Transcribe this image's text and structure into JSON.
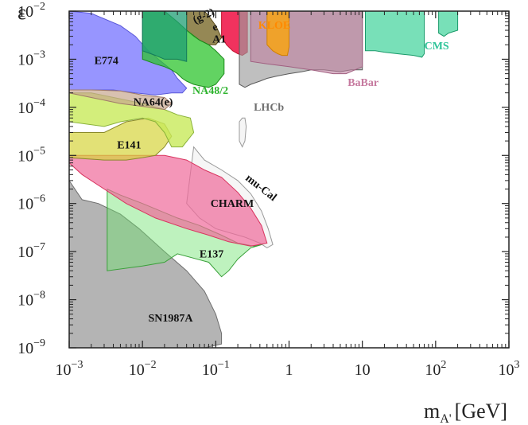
{
  "chart_data": {
    "type": "area",
    "title": "",
    "xlabel": "m",
    "xlabel_sub": "A'",
    "xlabel_unit": "[GeV]",
    "ylabel": "ε",
    "xscale": "log",
    "yscale": "log",
    "xlim": [
      0.001,
      1000
    ],
    "ylim": [
      1e-09,
      0.01
    ],
    "grid": false,
    "x_ticks": [
      {
        "value": 0.001,
        "base": "10",
        "exp": "−3"
      },
      {
        "value": 0.01,
        "base": "10",
        "exp": "−2"
      },
      {
        "value": 0.1,
        "base": "10",
        "exp": "−1"
      },
      {
        "value": 1,
        "base": "1",
        "exp": ""
      },
      {
        "value": 10,
        "base": "10",
        "exp": ""
      },
      {
        "value": 100,
        "base": "10",
        "exp": "2"
      },
      {
        "value": 1000,
        "base": "10",
        "exp": "3"
      }
    ],
    "y_ticks": [
      {
        "value": 0.01,
        "base": "10",
        "exp": "−2"
      },
      {
        "value": 0.001,
        "base": "10",
        "exp": "−3"
      },
      {
        "value": 0.0001,
        "base": "10",
        "exp": "−4"
      },
      {
        "value": 1e-05,
        "base": "10",
        "exp": "−5"
      },
      {
        "value": 1e-06,
        "base": "10",
        "exp": "−6"
      },
      {
        "value": 1e-07,
        "base": "10",
        "exp": "−7"
      },
      {
        "value": 1e-08,
        "base": "10",
        "exp": "−8"
      },
      {
        "value": 1e-09,
        "base": "10",
        "exp": "−9"
      }
    ],
    "regions": [
      {
        "name": "sn1987a",
        "fill": "#8c8c8c",
        "stroke": "#6e6e6e",
        "opacity": 0.65,
        "points": [
          [
            0.001,
            1e-09
          ],
          [
            0.001,
            3e-06
          ],
          [
            0.0015,
            1.2e-06
          ],
          [
            0.0025,
            1e-06
          ],
          [
            0.005,
            6e-07
          ],
          [
            0.009,
            3e-07
          ],
          [
            0.02,
            1e-07
          ],
          [
            0.04,
            4e-08
          ],
          [
            0.07,
            1.5e-08
          ],
          [
            0.1,
            5e-09
          ],
          [
            0.12,
            2e-09
          ],
          [
            0.12,
            1.2e-09
          ],
          [
            0.07,
            1e-09
          ]
        ]
      },
      {
        "name": "e137",
        "fill": "#6fe36f",
        "stroke": "#3aa03a",
        "opacity": 0.45,
        "points": [
          [
            0.0033,
            4e-08
          ],
          [
            0.0033,
            2e-06
          ],
          [
            0.005,
            1.5e-06
          ],
          [
            0.01,
            1e-06
          ],
          [
            0.03,
            5e-07
          ],
          [
            0.06,
            3.5e-07
          ],
          [
            0.12,
            2.2e-07
          ],
          [
            0.2,
            1.5e-07
          ],
          [
            0.33,
            1.3e-07
          ],
          [
            0.5,
            1.5e-07
          ],
          [
            0.3,
            1.2e-07
          ],
          [
            0.2,
            7e-08
          ],
          [
            0.15,
            4e-08
          ],
          [
            0.12,
            3e-08
          ],
          [
            0.08,
            6e-08
          ],
          [
            0.03,
            9e-08
          ],
          [
            0.02,
            6e-08
          ],
          [
            0.01,
            5e-08
          ]
        ]
      },
      {
        "name": "mucal",
        "fill": "#f4f4f4",
        "stroke": "#9a9a9a",
        "opacity": 0.85,
        "points": [
          [
            0.05,
            1.5e-05
          ],
          [
            0.07,
            8e-06
          ],
          [
            0.12,
            5e-06
          ],
          [
            0.2,
            3e-06
          ],
          [
            0.3,
            1.6e-06
          ],
          [
            0.42,
            7e-07
          ],
          [
            0.52,
            3e-07
          ],
          [
            0.6,
            1.4e-07
          ],
          [
            0.5,
            1.2e-07
          ],
          [
            0.4,
            1.5e-07
          ],
          [
            0.25,
            2e-07
          ],
          [
            0.15,
            2.5e-07
          ],
          [
            0.1,
            3e-07
          ],
          [
            0.06,
            5e-07
          ],
          [
            0.04,
            1e-06
          ]
        ]
      },
      {
        "name": "charm",
        "fill": "#f06a9a",
        "stroke": "#d9345f",
        "opacity": 0.7,
        "points": [
          [
            0.001,
            1e-05
          ],
          [
            0.001,
            7e-06
          ],
          [
            0.0015,
            4e-06
          ],
          [
            0.003,
            2e-06
          ],
          [
            0.006,
            1e-06
          ],
          [
            0.015,
            5e-07
          ],
          [
            0.04,
            3e-07
          ],
          [
            0.08,
            2.2e-07
          ],
          [
            0.15,
            1.6e-07
          ],
          [
            0.3,
            1.3e-07
          ],
          [
            0.5,
            1.5e-07
          ],
          [
            0.42,
            3.5e-07
          ],
          [
            0.3,
            8e-07
          ],
          [
            0.2,
            1.7e-06
          ],
          [
            0.12,
            3.5e-06
          ],
          [
            0.07,
            5e-06
          ],
          [
            0.04,
            8e-06
          ],
          [
            0.02,
            1e-05
          ]
        ]
      },
      {
        "name": "e141",
        "fill": "#d6d43c",
        "stroke": "#8a8a2a",
        "opacity": 0.7,
        "points": [
          [
            0.001,
            3e-05
          ],
          [
            0.001,
            9e-06
          ],
          [
            0.003,
            8e-06
          ],
          [
            0.006,
            8e-06
          ],
          [
            0.01,
            9e-06
          ],
          [
            0.015,
            1e-05
          ],
          [
            0.02,
            1.5e-05
          ],
          [
            0.025,
            2.5e-05
          ],
          [
            0.02,
            4.5e-05
          ],
          [
            0.012,
            6e-05
          ],
          [
            0.006,
            5e-05
          ],
          [
            0.003,
            3e-05
          ]
        ]
      },
      {
        "name": "na64",
        "fill": "#c8ea5a",
        "stroke": "#8ab23a",
        "opacity": 0.8,
        "points": [
          [
            0.001,
            0.0002
          ],
          [
            0.002,
            0.0002
          ],
          [
            0.005,
            0.00015
          ],
          [
            0.01,
            0.00012
          ],
          [
            0.02,
            9e-05
          ],
          [
            0.03,
            7e-05
          ],
          [
            0.045,
            6e-05
          ],
          [
            0.05,
            3e-05
          ],
          [
            0.035,
            1.5e-05
          ],
          [
            0.025,
            1.5e-05
          ],
          [
            0.02,
            3e-05
          ],
          [
            0.015,
            5e-05
          ],
          [
            0.01,
            6e-05
          ],
          [
            0.005,
            5e-05
          ],
          [
            0.003,
            4e-05
          ],
          [
            0.001,
            5e-05
          ]
        ]
      },
      {
        "name": "e774",
        "fill": "#7d7bff",
        "stroke": "#5a58d8",
        "opacity": 0.8,
        "points": [
          [
            0.001,
            0.01
          ],
          [
            0.002,
            0.009
          ],
          [
            0.005,
            0.005
          ],
          [
            0.008,
            0.003
          ],
          [
            0.012,
            0.0015
          ],
          [
            0.018,
            0.0009
          ],
          [
            0.025,
            0.0006
          ],
          [
            0.03,
            0.0004
          ],
          [
            0.04,
            0.00025
          ],
          [
            0.035,
            0.0002
          ],
          [
            0.025,
            0.0002
          ],
          [
            0.015,
            0.00018
          ],
          [
            0.008,
            0.0002
          ],
          [
            0.004,
            0.00023
          ],
          [
            0.002,
            0.00023
          ],
          [
            0.001,
            0.00023
          ]
        ]
      },
      {
        "name": "dark-tan",
        "fill": "#c8a68f",
        "stroke": "#a07a6a",
        "opacity": 0.7,
        "points": [
          [
            0.001,
            0.0002
          ],
          [
            0.002,
            0.00016
          ],
          [
            0.005,
            0.00012
          ],
          [
            0.01,
            0.000105
          ],
          [
            0.02,
            9e-05
          ],
          [
            0.025,
            0.00012
          ],
          [
            0.02,
            0.00016
          ],
          [
            0.01,
            0.00018
          ],
          [
            0.005,
            0.00022
          ],
          [
            0.002,
            0.00023
          ],
          [
            0.001,
            0.00023
          ]
        ]
      },
      {
        "name": "g2",
        "fill": "#7a6a2a",
        "stroke": "#5a4a1a",
        "opacity": 0.8,
        "points": [
          [
            0.04,
            0.01
          ],
          [
            0.04,
            0.004
          ],
          [
            0.05,
            0.003
          ],
          [
            0.06,
            0.0025
          ],
          [
            0.08,
            0.002
          ],
          [
            0.1,
            0.002
          ],
          [
            0.12,
            0.0028
          ],
          [
            0.1,
            0.005
          ],
          [
            0.08,
            0.008
          ],
          [
            0.07,
            0.01
          ]
        ]
      },
      {
        "name": "na48",
        "fill": "#2ec42e",
        "stroke": "#1a8a1a",
        "opacity": 0.75,
        "points": [
          [
            0.01,
            0.01
          ],
          [
            0.01,
            0.001
          ],
          [
            0.015,
            0.0008
          ],
          [
            0.02,
            0.0007
          ],
          [
            0.025,
            0.0006
          ],
          [
            0.03,
            0.0005
          ],
          [
            0.035,
            0.0004
          ],
          [
            0.04,
            0.00035
          ],
          [
            0.05,
            0.0003
          ],
          [
            0.06,
            0.00028
          ],
          [
            0.08,
            0.00026
          ],
          [
            0.1,
            0.0003
          ],
          [
            0.13,
            0.0005
          ],
          [
            0.13,
            0.001
          ],
          [
            0.1,
            0.0015
          ],
          [
            0.08,
            0.002
          ],
          [
            0.06,
            0.0025
          ],
          [
            0.04,
            0.004
          ],
          [
            0.03,
            0.006
          ],
          [
            0.02,
            0.01
          ]
        ]
      },
      {
        "name": "teal-left",
        "fill": "#1f9e74",
        "stroke": "#137a5a",
        "opacity": 0.75,
        "points": [
          [
            0.01,
            0.01
          ],
          [
            0.01,
            0.0015
          ],
          [
            0.015,
            0.0012
          ],
          [
            0.02,
            0.001
          ],
          [
            0.03,
            0.001
          ],
          [
            0.04,
            0.0009
          ],
          [
            0.04,
            0.01
          ]
        ]
      },
      {
        "name": "a1",
        "fill": "#f01c4c",
        "stroke": "#c0102c",
        "opacity": 0.9,
        "points": [
          [
            0.12,
            0.01
          ],
          [
            0.12,
            0.003
          ],
          [
            0.14,
            0.002
          ],
          [
            0.17,
            0.0015
          ],
          [
            0.2,
            0.0013
          ],
          [
            0.23,
            0.0012
          ],
          [
            0.27,
            0.0014
          ],
          [
            0.27,
            0.01
          ]
        ]
      },
      {
        "name": "lhcb",
        "fill": "#9c9c9c",
        "stroke": "#5a5a5a",
        "opacity": 0.65,
        "points": [
          [
            0.21,
            0.01
          ],
          [
            0.21,
            0.0003
          ],
          [
            0.25,
            0.00026
          ],
          [
            0.3,
            0.0003
          ],
          [
            0.4,
            0.00035
          ],
          [
            0.5,
            0.0004
          ],
          [
            0.7,
            0.00045
          ],
          [
            1,
            0.0005
          ],
          [
            1.5,
            0.00055
          ],
          [
            2,
            0.0006
          ],
          [
            3,
            0.0006
          ],
          [
            5,
            0.00055
          ],
          [
            7,
            0.0006
          ],
          [
            10,
            0.0006
          ],
          [
            10,
            0.01
          ]
        ]
      },
      {
        "name": "babar",
        "fill": "#c080a0",
        "stroke": "#a06080",
        "opacity": 0.6,
        "points": [
          [
            0.3,
            0.01
          ],
          [
            0.3,
            0.0009
          ],
          [
            0.5,
            0.0008
          ],
          [
            1,
            0.0007
          ],
          [
            2,
            0.0006
          ],
          [
            4,
            0.0005
          ],
          [
            6,
            0.0005
          ],
          [
            10,
            0.0007
          ],
          [
            10,
            0.01
          ]
        ]
      },
      {
        "name": "kloe",
        "fill": "#ffa500",
        "stroke": "#d08000",
        "opacity": 0.75,
        "points": [
          [
            0.5,
            0.01
          ],
          [
            0.5,
            0.002
          ],
          [
            0.6,
            0.0015
          ],
          [
            0.7,
            0.0013
          ],
          [
            0.8,
            0.0012
          ],
          [
            0.95,
            0.0012
          ],
          [
            1,
            0.0018
          ],
          [
            1,
            0.01
          ]
        ]
      },
      {
        "name": "lhcb-island",
        "fill": "#f4f4f4",
        "stroke": "#9a9a9a",
        "opacity": 0.9,
        "points": [
          [
            0.21,
            5e-05
          ],
          [
            0.21,
            2e-05
          ],
          [
            0.23,
            1.5e-05
          ],
          [
            0.25,
            2e-05
          ],
          [
            0.26,
            4e-05
          ],
          [
            0.25,
            6e-05
          ],
          [
            0.23,
            6e-05
          ]
        ]
      },
      {
        "name": "cms",
        "fill": "#3ed39a",
        "stroke": "#1a9a6a",
        "opacity": 0.7,
        "points": [
          [
            11,
            0.01
          ],
          [
            11,
            0.0015
          ],
          [
            15,
            0.0015
          ],
          [
            20,
            0.0014
          ],
          [
            30,
            0.0013
          ],
          [
            50,
            0.0012
          ],
          [
            65,
            0.0011
          ],
          [
            70,
            0.0013
          ],
          [
            70,
            0.01
          ]
        ]
      },
      {
        "name": "cms-right",
        "fill": "#3ed39a",
        "stroke": "#1a9a6a",
        "opacity": 0.7,
        "points": [
          [
            110,
            0.01
          ],
          [
            110,
            0.0035
          ],
          [
            130,
            0.003
          ],
          [
            150,
            0.0035
          ],
          [
            200,
            0.004
          ],
          [
            200,
            0.01
          ]
        ]
      }
    ],
    "labels": [
      {
        "text": "E774",
        "x": 0.0022,
        "y": 0.0008,
        "color": "#111111"
      },
      {
        "text": "NA64(e)",
        "x": 0.0075,
        "y": 0.00011,
        "color": "#111111"
      },
      {
        "text": "E141",
        "x": 0.0045,
        "y": 1.4e-05,
        "color": "#111111"
      },
      {
        "text": "mu-Cal",
        "x": 0.25,
        "y": 3.2e-06,
        "color": "#111111",
        "rotate": 38
      },
      {
        "text": "CHARM",
        "x": 0.085,
        "y": 8.5e-07,
        "color": "#111111"
      },
      {
        "text": "E137",
        "x": 0.06,
        "y": 7.5e-08,
        "color": "#111111"
      },
      {
        "text": "SN1987A",
        "x": 0.012,
        "y": 3.5e-09,
        "color": "#111111"
      },
      {
        "text": "(g-2)",
        "x": 0.052,
        "y": 0.0055,
        "color": "#111111",
        "rotate": -25,
        "size": 11
      },
      {
        "text": "e",
        "x": 0.095,
        "y": 0.0038,
        "color": "#111111",
        "rotate": -25,
        "size": 10
      },
      {
        "text": "A1",
        "x": 0.09,
        "y": 0.0022,
        "color": "#111111"
      },
      {
        "text": "NA48/2",
        "x": 0.048,
        "y": 0.00019,
        "color": "#2fb42f"
      },
      {
        "text": "KLOE",
        "x": 0.38,
        "y": 0.0043,
        "color": "#ff8a00"
      },
      {
        "text": "LHCb",
        "x": 0.33,
        "y": 8.5e-05,
        "color": "#6f6f6f"
      },
      {
        "text": "BaBar",
        "x": 6.3,
        "y": 0.00028,
        "color": "#c67a9f"
      },
      {
        "text": "CMS",
        "x": 70,
        "y": 0.0016,
        "color": "#2fc499"
      }
    ]
  }
}
